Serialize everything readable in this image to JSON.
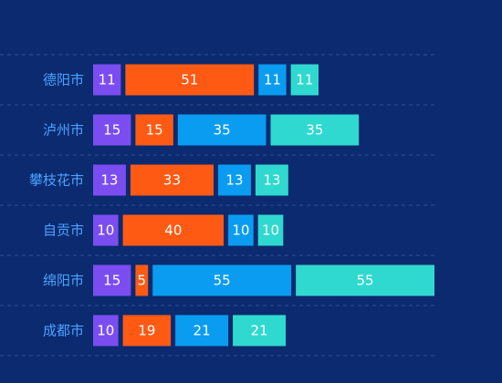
{
  "chart_data": {
    "type": "bar",
    "orientation": "horizontal",
    "stacked": true,
    "categories": [
      "德阳市",
      "泸州市",
      "攀枝花市",
      "自贡市",
      "绵阳市",
      "成都市"
    ],
    "series": [
      {
        "values": [
          11,
          15,
          13,
          10,
          15,
          10
        ],
        "color": "#7b4df1"
      },
      {
        "values": [
          51,
          15,
          33,
          40,
          5,
          19
        ],
        "color": "#ff5a14"
      },
      {
        "values": [
          11,
          35,
          13,
          10,
          55,
          21
        ],
        "color": "#0a9cf0"
      },
      {
        "values": [
          11,
          35,
          13,
          10,
          55,
          21
        ],
        "color": "#2fd9cf"
      }
    ],
    "legend": false,
    "grid": true,
    "x_axis_visible": false
  },
  "colors": {
    "background": "#0b2a6f",
    "category_label": "#4aa3ff",
    "bar_label": "#ffffff",
    "grid": "#2c5395"
  }
}
